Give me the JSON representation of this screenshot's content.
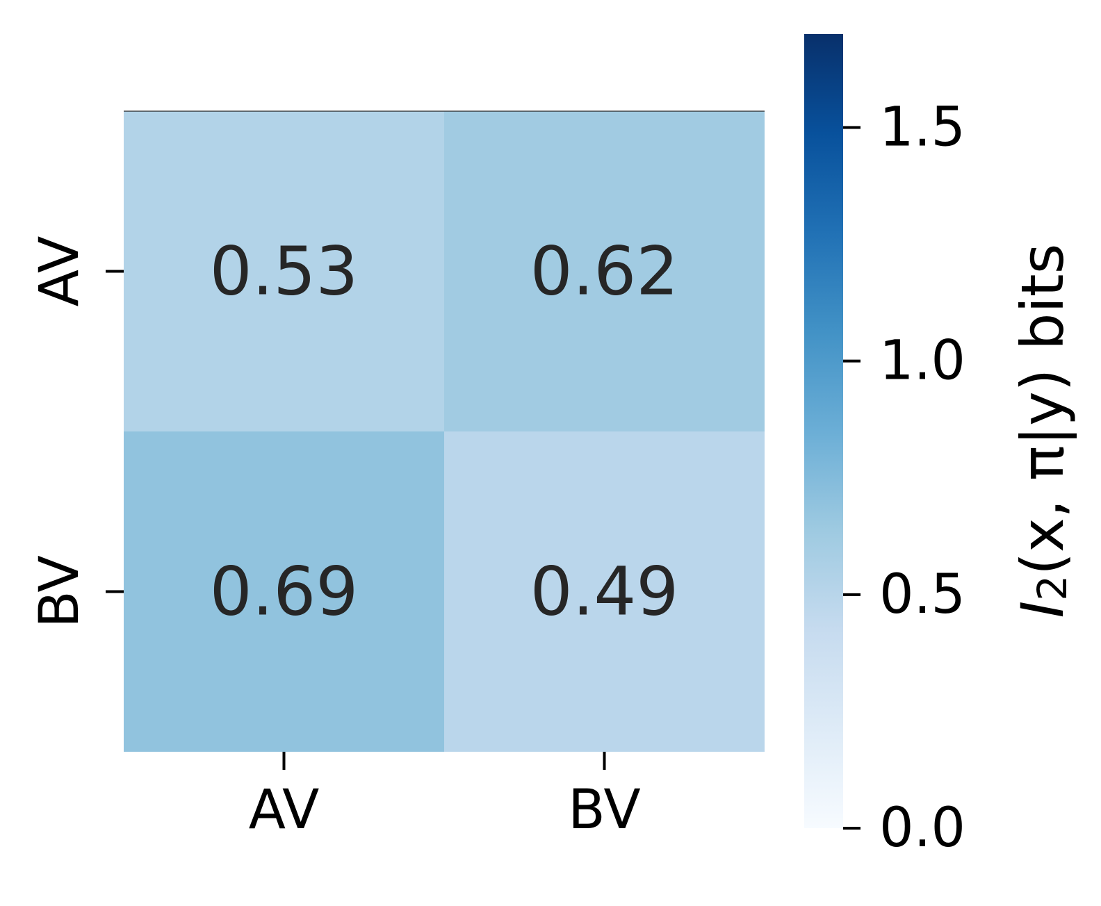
{
  "chart_data": {
    "type": "heatmap",
    "title": "",
    "xlabel": "",
    "ylabel": "",
    "x_categories": [
      "AV",
      "BV"
    ],
    "y_categories": [
      "AV",
      "BV"
    ],
    "values": [
      [
        0.53,
        0.62
      ],
      [
        0.69,
        0.49
      ]
    ],
    "value_labels": [
      [
        "0.53",
        "0.62"
      ],
      [
        "0.69",
        "0.49"
      ]
    ],
    "colormap": "Blues",
    "colorbar": {
      "range": [
        0.0,
        1.7
      ],
      "ticks": [
        0.0,
        0.5,
        1.0,
        1.5
      ],
      "tick_labels": [
        "0.0",
        "0.5",
        "1.0",
        "1.5"
      ],
      "label_parts": {
        "main": "I",
        "subscript": "2",
        "rest": "(x, π|y) bits"
      }
    },
    "grid": false
  }
}
